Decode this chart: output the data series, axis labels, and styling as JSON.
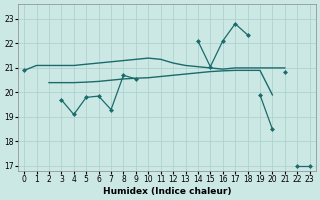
{
  "xlabel": "Humidex (Indice chaleur)",
  "background_color": "#cce8e4",
  "grid_color": "#aacfcb",
  "line_color": "#1a6b6b",
  "x": [
    0,
    1,
    2,
    3,
    4,
    5,
    6,
    7,
    8,
    9,
    10,
    11,
    12,
    13,
    14,
    15,
    16,
    17,
    18,
    19,
    20,
    21,
    22,
    23
  ],
  "line1": [
    20.9,
    21.1,
    21.1,
    21.1,
    21.1,
    21.15,
    21.2,
    21.25,
    21.3,
    21.35,
    21.4,
    21.35,
    21.2,
    21.1,
    21.05,
    21.0,
    20.95,
    21.0,
    21.0,
    21.0,
    21.0,
    21.0,
    null,
    null
  ],
  "line2": [
    null,
    null,
    20.4,
    20.4,
    20.4,
    20.42,
    20.45,
    20.5,
    20.55,
    20.58,
    20.6,
    20.65,
    20.7,
    20.75,
    20.8,
    20.85,
    20.88,
    20.9,
    20.9,
    20.9,
    19.9,
    null,
    null,
    null
  ],
  "line3": [
    null,
    null,
    null,
    19.7,
    19.1,
    19.8,
    19.85,
    19.3,
    20.7,
    20.55,
    null,
    null,
    null,
    null,
    null,
    null,
    null,
    null,
    null,
    null,
    null,
    null,
    null,
    null
  ],
  "line4": [
    null,
    null,
    null,
    null,
    null,
    null,
    null,
    null,
    null,
    null,
    null,
    null,
    null,
    null,
    22.1,
    21.05,
    22.1,
    22.8,
    22.35,
    null,
    null,
    20.85,
    null,
    null
  ],
  "line5": [
    20.9,
    null,
    null,
    null,
    null,
    null,
    null,
    null,
    null,
    null,
    null,
    null,
    null,
    null,
    null,
    null,
    null,
    null,
    null,
    19.9,
    18.5,
    null,
    17.0,
    17.0
  ],
  "xlim": [
    -0.5,
    23.5
  ],
  "ylim": [
    16.8,
    23.6
  ],
  "yticks": [
    17,
    18,
    19,
    20,
    21,
    22,
    23
  ],
  "xticks": [
    0,
    1,
    2,
    3,
    4,
    5,
    6,
    7,
    8,
    9,
    10,
    11,
    12,
    13,
    14,
    15,
    16,
    17,
    18,
    19,
    20,
    21,
    22,
    23
  ]
}
